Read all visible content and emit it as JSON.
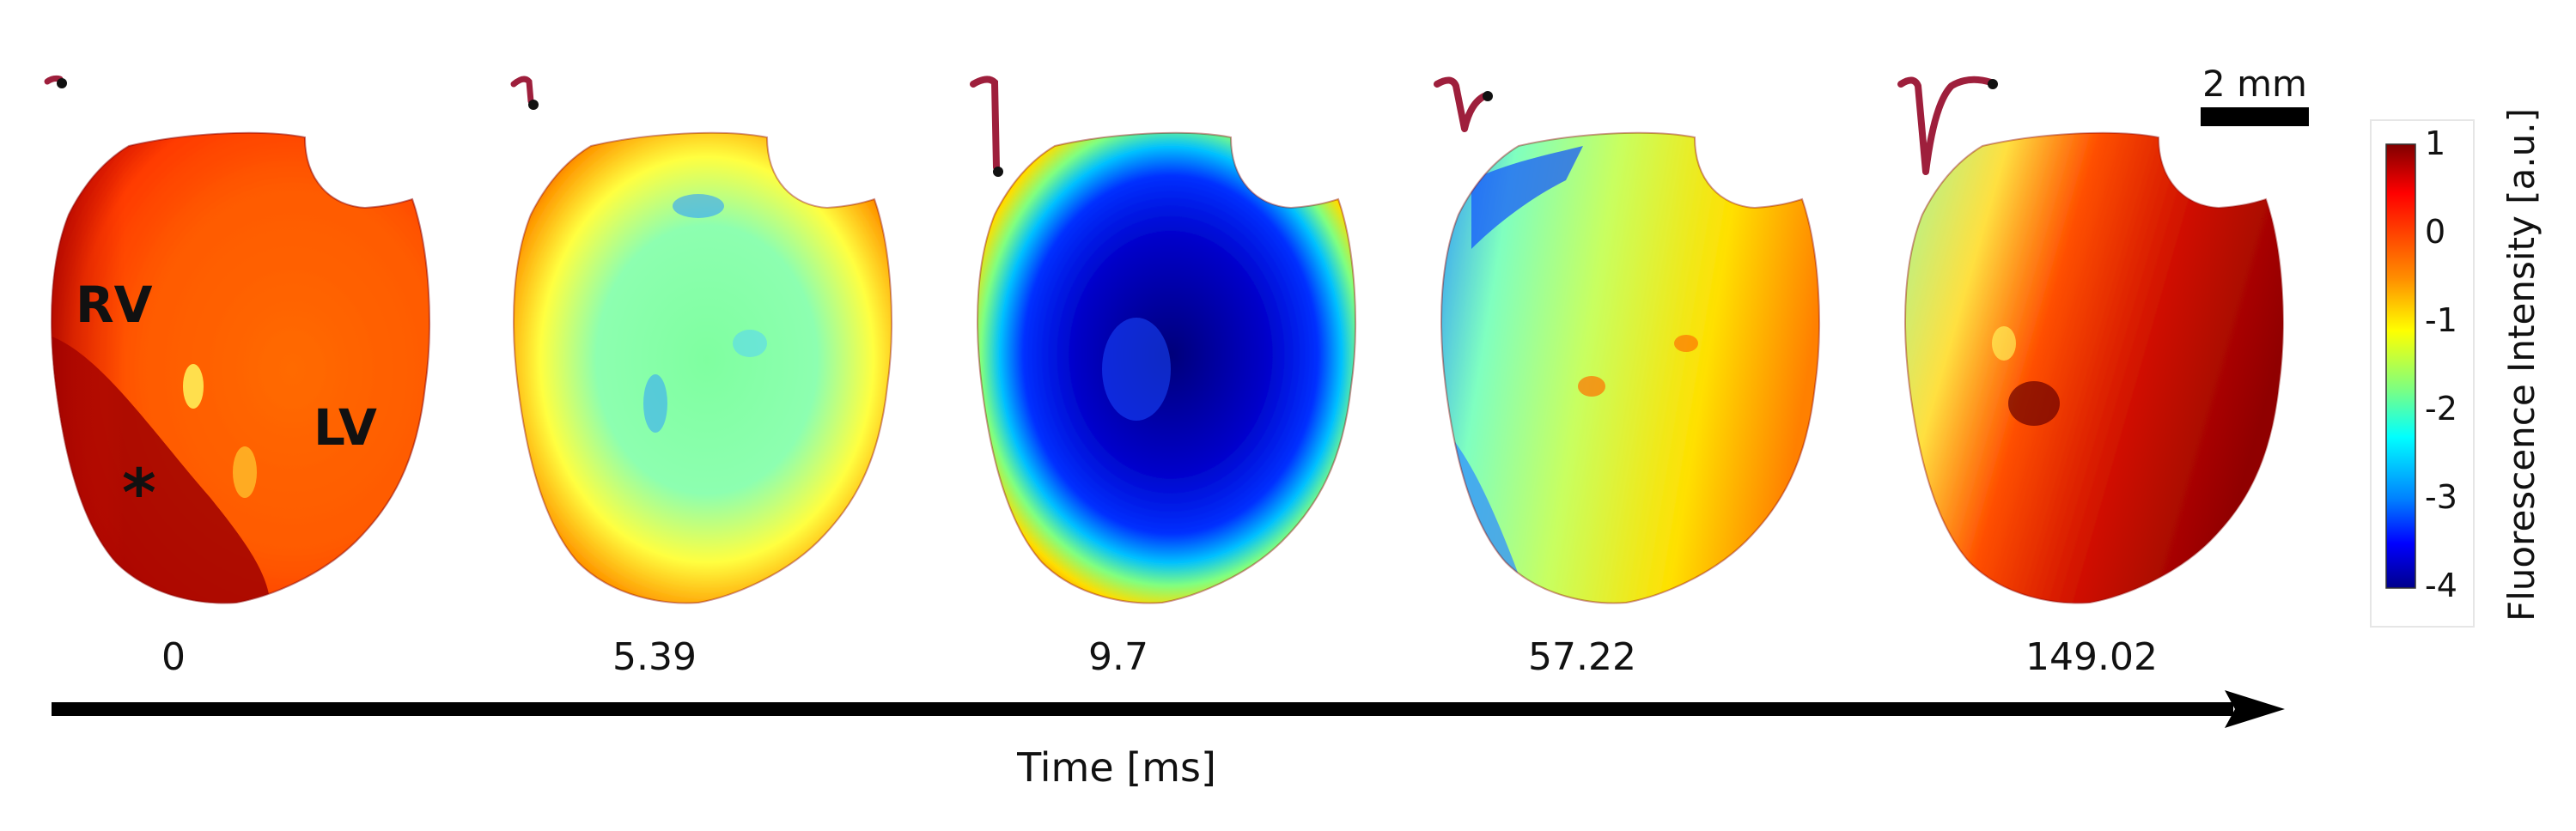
{
  "panels": [
    {
      "time": "0",
      "annotations": {
        "rv": "RV",
        "lv": "LV",
        "marker": "*"
      }
    },
    {
      "time": "5.39"
    },
    {
      "time": "9.7"
    },
    {
      "time": "57.22"
    },
    {
      "time": "149.02"
    }
  ],
  "time_axis": {
    "label": "Time [ms]"
  },
  "scale_bar": {
    "label": "2 mm"
  },
  "colorbar": {
    "label": "Fluorescence Intensity [a.u.]",
    "ticks": [
      "1",
      "0",
      "-1",
      "-2",
      "-3",
      "-4"
    ],
    "range": [
      -4,
      1
    ],
    "colormap": "jet"
  },
  "colors": {
    "trace": "#9e1f3c",
    "trace_dot": "#111111",
    "arrow": "#000000",
    "heart_outline": "#8b0000"
  }
}
